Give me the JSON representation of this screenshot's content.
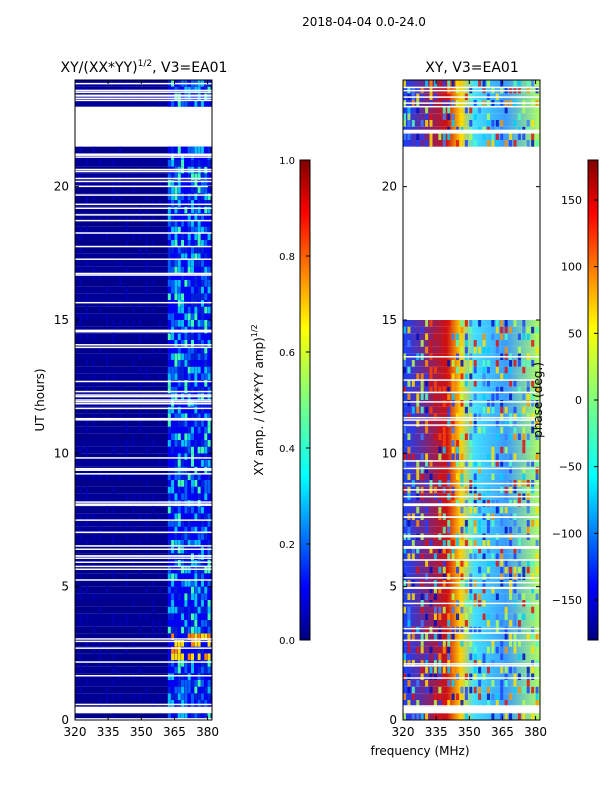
{
  "suptitle": "2018-04-04 0.0-24.0",
  "shared_xlabel": "frequency (MHz)",
  "colors": {
    "jet": [
      "#00007f",
      "#0000ff",
      "#007fff",
      "#00ffff",
      "#7fff7f",
      "#ffff00",
      "#ff7f00",
      "#ff0000",
      "#7f0000"
    ],
    "background": "#ffffff",
    "frame": "#000000"
  },
  "chart_data": [
    {
      "type": "heatmap",
      "title": "XY/(XX*YY)",
      "title_sup": "1/2",
      "title_suffix": ", V3=EA01",
      "xlabel": "",
      "ylabel": "UT (hours)",
      "xlim": [
        320,
        382
      ],
      "ylim": [
        0,
        24
      ],
      "xticks": [
        320,
        335,
        350,
        365,
        380
      ],
      "yticks": [
        0,
        5,
        10,
        15,
        20
      ],
      "colorbar": {
        "label": "XY amp. / (XX*YY amp)",
        "label_sup": "1/2",
        "range": [
          0.0,
          1.0
        ],
        "ticks": [
          "0.0",
          "0.2",
          "0.4",
          "0.6",
          "0.8",
          "1.0"
        ],
        "tick_values": [
          0.0,
          0.2,
          0.4,
          0.6,
          0.8,
          1.0
        ]
      },
      "data_gaps_hours": [
        [
          21.5,
          23.1
        ],
        [
          14.9,
          15.0
        ],
        [
          0.3,
          0.4
        ]
      ],
      "observed_range_hours": [
        0.0,
        24.0
      ],
      "description_values": {
        "low_freq_amp": 0.05,
        "high_freq_band_mhz": [
          362,
          381
        ],
        "high_freq_amp": 0.35
      }
    },
    {
      "type": "heatmap",
      "title": "XY, V3=EA01",
      "xlabel": "",
      "ylabel": "",
      "xlim": [
        320,
        382
      ],
      "ylim": [
        0,
        24
      ],
      "xticks": [
        320,
        335,
        350,
        365,
        380
      ],
      "yticks": [
        0,
        5,
        10,
        15,
        20
      ],
      "colorbar": {
        "label": "phase (deg.)",
        "range": [
          -180,
          180
        ],
        "ticks": [
          "150",
          "100",
          "50",
          "0",
          "−50",
          "−100",
          "−150"
        ],
        "tick_values": [
          150,
          100,
          50,
          0,
          -50,
          -100,
          -150
        ]
      },
      "data_gaps_hours": [
        [
          14.9,
          21.5
        ],
        [
          0.3,
          0.4
        ]
      ],
      "observed_range_hours": [
        0.0,
        24.0
      ]
    }
  ]
}
